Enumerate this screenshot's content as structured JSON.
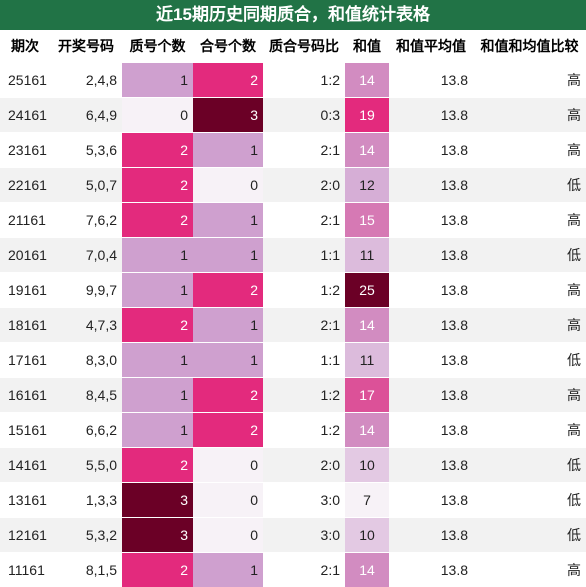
{
  "title": "近15期历史同期质合，和值统计表格",
  "table": {
    "columns": [
      "期次",
      "开奖号码",
      "质号个数",
      "合号个数",
      "质合号码比",
      "和值",
      "和值平均值",
      "和值和均值比较"
    ],
    "rows": [
      [
        "25161",
        "2,4,8",
        1,
        2,
        "1:2",
        14,
        13.8,
        "高"
      ],
      [
        "24161",
        "6,4,9",
        0,
        3,
        "0:3",
        19,
        13.8,
        "高"
      ],
      [
        "23161",
        "5,3,6",
        2,
        1,
        "2:1",
        14,
        13.8,
        "高"
      ],
      [
        "22161",
        "5,0,7",
        2,
        0,
        "2:0",
        12,
        13.8,
        "低"
      ],
      [
        "21161",
        "7,6,2",
        2,
        1,
        "2:1",
        15,
        13.8,
        "高"
      ],
      [
        "20161",
        "7,0,4",
        1,
        1,
        "1:1",
        11,
        13.8,
        "低"
      ],
      [
        "19161",
        "9,9,7",
        1,
        2,
        "1:2",
        25,
        13.8,
        "高"
      ],
      [
        "18161",
        "4,7,3",
        2,
        1,
        "2:1",
        14,
        13.8,
        "高"
      ],
      [
        "17161",
        "8,3,0",
        1,
        1,
        "1:1",
        11,
        13.8,
        "低"
      ],
      [
        "16161",
        "8,4,5",
        1,
        2,
        "1:2",
        17,
        13.8,
        "高"
      ],
      [
        "15161",
        "6,6,2",
        1,
        2,
        "1:2",
        14,
        13.8,
        "高"
      ],
      [
        "14161",
        "5,5,0",
        2,
        0,
        "2:0",
        10,
        13.8,
        "低"
      ],
      [
        "13161",
        "1,3,3",
        3,
        0,
        "3:0",
        7,
        13.8,
        "低"
      ],
      [
        "12161",
        "5,3,2",
        3,
        0,
        "3:0",
        10,
        13.8,
        "低"
      ],
      [
        "11161",
        "8,1,5",
        2,
        1,
        "2:1",
        14,
        13.8,
        "高"
      ]
    ]
  }
}
